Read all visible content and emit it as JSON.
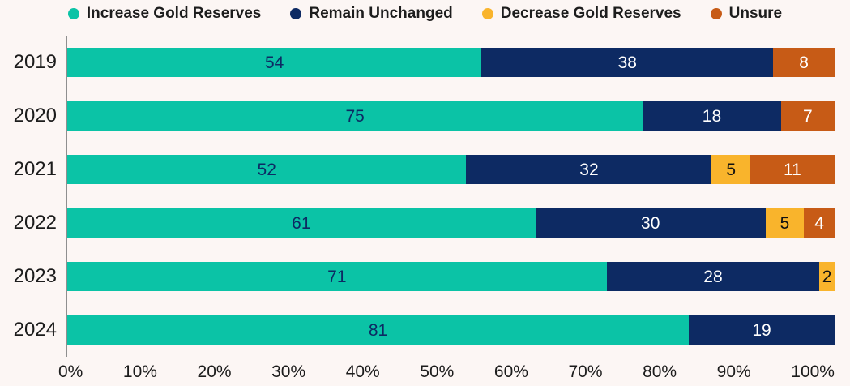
{
  "legend": {
    "position": "top",
    "items": [
      {
        "label": "Increase Gold Reserves",
        "color": "#0BC3A6"
      },
      {
        "label": "Remain Unchanged",
        "color": "#0D2A63"
      },
      {
        "label": "Decrease Gold Reserves",
        "color": "#F9B42C"
      },
      {
        "label": "Unsure",
        "color": "#C75B16"
      }
    ]
  },
  "chart_data": {
    "type": "bar",
    "orientation": "horizontal",
    "stacked": true,
    "title": "",
    "xlabel": "",
    "ylabel": "",
    "xlim": [
      0,
      100
    ],
    "grid": false,
    "legend_position": "top",
    "categories": [
      "2019",
      "2020",
      "2021",
      "2022",
      "2023",
      "2024"
    ],
    "series": [
      {
        "name": "Increase Gold Reserves",
        "color": "#0BC3A6",
        "label_color": "#0D2A63",
        "values": [
          54,
          75,
          52,
          61,
          71,
          81
        ]
      },
      {
        "name": "Remain Unchanged",
        "color": "#0D2A63",
        "label_color": "#FFFFFF",
        "values": [
          38,
          18,
          32,
          30,
          28,
          19
        ]
      },
      {
        "name": "Decrease Gold Reserves",
        "color": "#F9B42C",
        "label_color": "#111111",
        "values": [
          0,
          0,
          5,
          5,
          2,
          0
        ]
      },
      {
        "name": "Unsure",
        "color": "#C75B16",
        "label_color": "#FFFFFF",
        "values": [
          8,
          7,
          11,
          4,
          0,
          0
        ]
      }
    ],
    "x_ticks": [
      "0%",
      "10%",
      "20%",
      "30%",
      "40%",
      "50%",
      "60%",
      "70%",
      "80%",
      "90%",
      "100%"
    ]
  },
  "colors": {
    "background": "#FCF6F4",
    "axis_line": "#8F8F8F",
    "text": "#1D1D1D"
  }
}
